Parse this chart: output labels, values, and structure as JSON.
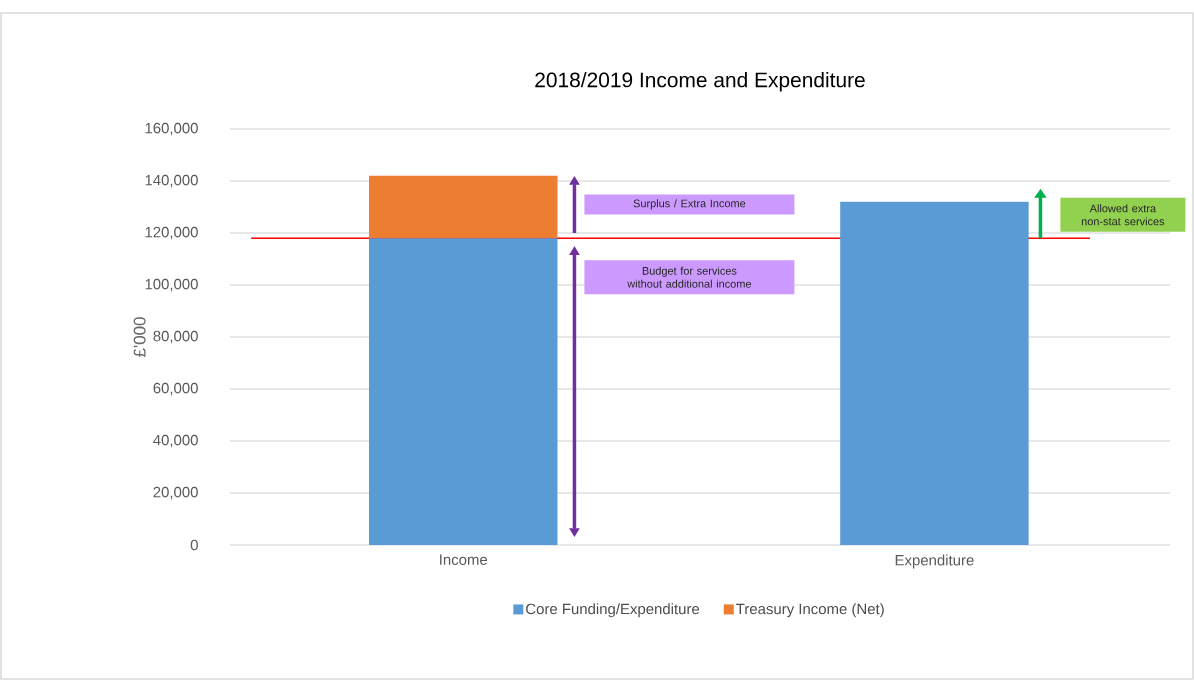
{
  "chart_data": {
    "type": "bar",
    "stacked": true,
    "title": "2018/2019 Income and Expenditure",
    "ylabel": "£'000",
    "categories": [
      "Income",
      "Expenditure"
    ],
    "series": [
      {
        "name": "Core Funding/Expenditure",
        "color": "#5b9bd5",
        "values": [
          118000,
          132000
        ]
      },
      {
        "name": "Treasury Income (Net)",
        "color": "#ed7d31",
        "values": [
          24000,
          null
        ]
      }
    ],
    "ylim": [
      0,
      160000
    ],
    "yticks": [
      0,
      {
        "value": 20000,
        "label": "20,000"
      },
      {
        "value": 40000,
        "label": "40,000"
      },
      {
        "value": 60000,
        "label": "60,000"
      },
      {
        "value": 80000,
        "label": "80,000"
      },
      {
        "value": 100000,
        "label": "100,000"
      },
      {
        "value": 120000,
        "label": "120,000"
      },
      {
        "value": 140000,
        "label": "140,000"
      },
      {
        "value": 160000,
        "label": "160,000"
      }
    ],
    "grid": "y",
    "legend": "bottom",
    "ref_lines": [
      {
        "axis": "y",
        "value": 118000,
        "color": "#ff0000"
      }
    ],
    "annotations": [
      "Surplus / Extra Income",
      "Budget for services without additional income",
      "Allowed extra non-stat services"
    ]
  }
}
